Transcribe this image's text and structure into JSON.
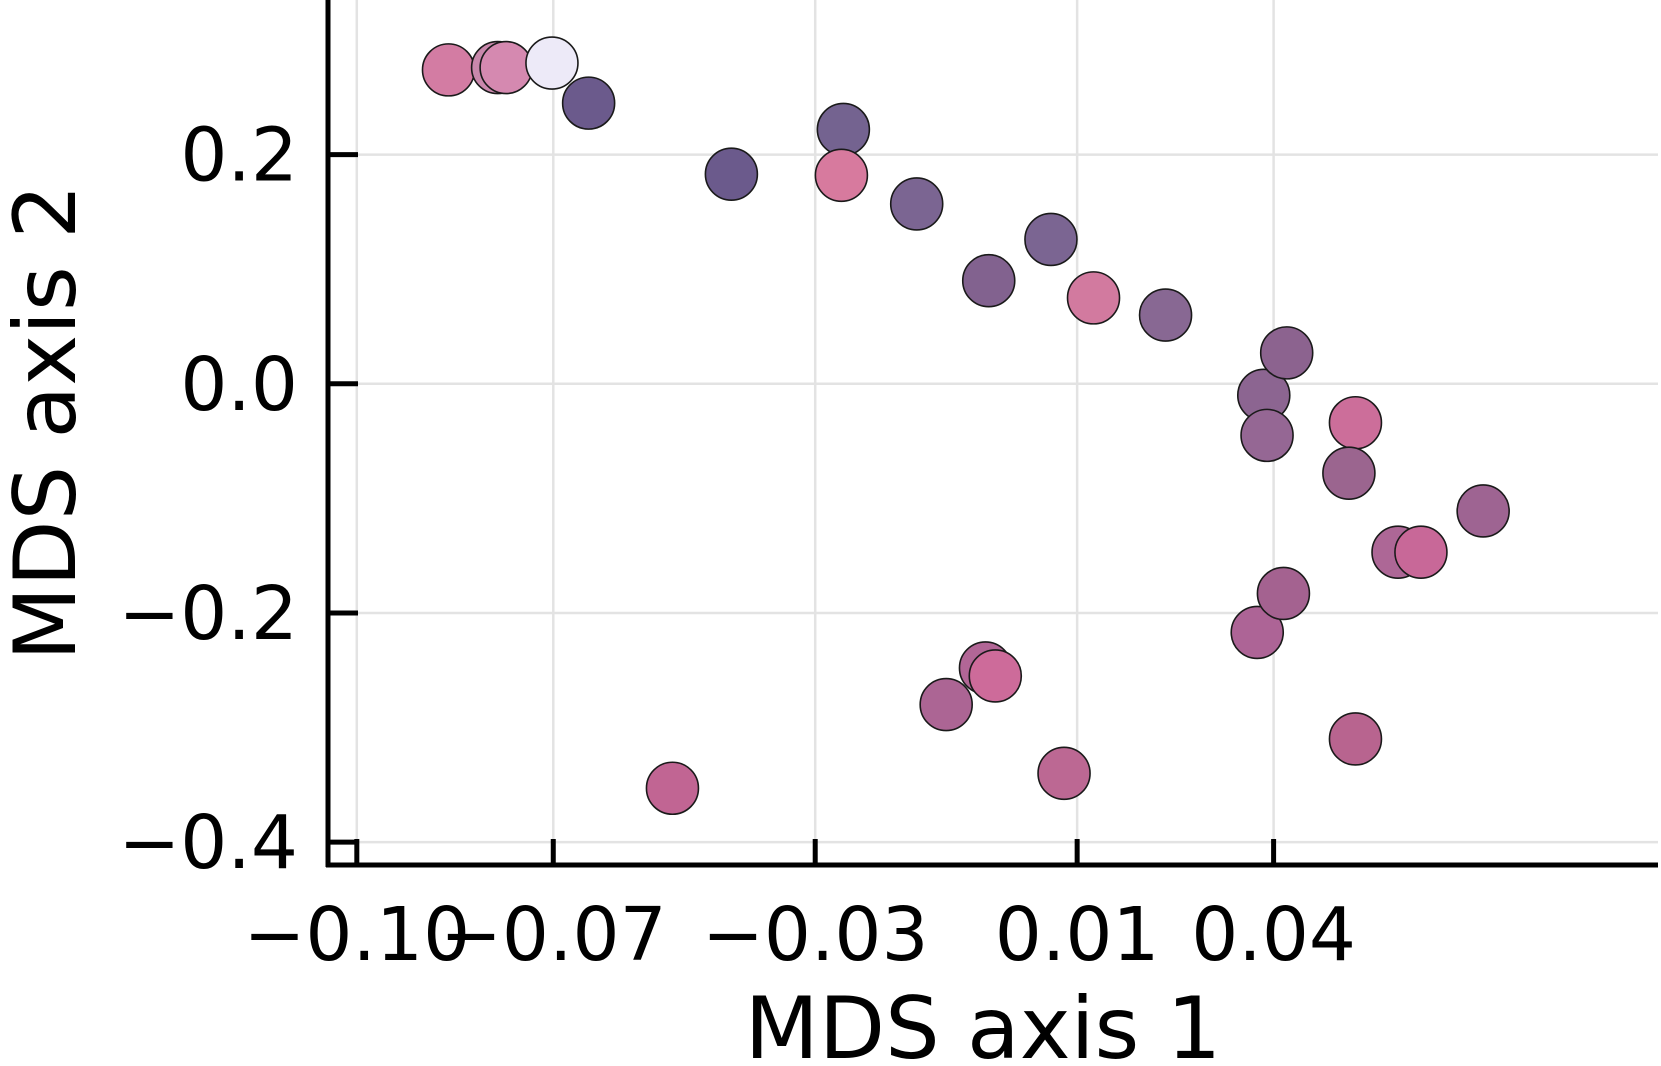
{
  "chart_data": {
    "type": "scatter",
    "title": "",
    "xlabel": "MDS axis 1",
    "ylabel": "MDS axis 2",
    "xlim": [
      -0.1044,
      0.0987
    ],
    "ylim": [
      -0.42,
      0.335
    ],
    "xticks": [
      -0.1,
      -0.07,
      -0.03,
      0.01,
      0.04
    ],
    "xtick_labels": [
      "−0.10",
      "−0.07",
      "−0.03",
      "0.01",
      "0.04"
    ],
    "yticks": [
      -0.4,
      -0.2,
      0.0,
      0.2
    ],
    "ytick_labels": [
      "−0.4",
      "−0.2",
      "0.0",
      "0.2"
    ],
    "grid": true,
    "legend": false,
    "points": [
      {
        "x": -0.086,
        "y": 0.274,
        "color": "#d37ca3"
      },
      {
        "x": -0.0785,
        "y": 0.276,
        "color": "#c988ac"
      },
      {
        "x": -0.0772,
        "y": 0.276,
        "color": "#d589b0"
      },
      {
        "x": -0.0702,
        "y": 0.28,
        "color": "#edeaf8"
      },
      {
        "x": -0.0646,
        "y": 0.245,
        "color": "#6b5a8c"
      },
      {
        "x": -0.0518,
        "y": -0.353,
        "color": "#c16593"
      },
      {
        "x": -0.0428,
        "y": 0.183,
        "color": "#6b5a8c"
      },
      {
        "x": -0.0257,
        "y": 0.222,
        "color": "#746390"
      },
      {
        "x": -0.026,
        "y": 0.182,
        "color": "#d77a9e"
      },
      {
        "x": -0.0145,
        "y": 0.157,
        "color": "#7b6592"
      },
      {
        "x": -0.01,
        "y": -0.28,
        "color": "#ac6594"
      },
      {
        "x": -0.004,
        "y": -0.248,
        "color": "#b26696"
      },
      {
        "x": -0.0025,
        "y": -0.255,
        "color": "#cd6b9a"
      },
      {
        "x": -0.0035,
        "y": 0.09,
        "color": "#82628f"
      },
      {
        "x": 0.006,
        "y": 0.126,
        "color": "#7b6592"
      },
      {
        "x": 0.0125,
        "y": 0.075,
        "color": "#d27a9f"
      },
      {
        "x": 0.008,
        "y": -0.34,
        "color": "#bc6893"
      },
      {
        "x": 0.0235,
        "y": 0.06,
        "color": "#886893"
      },
      {
        "x": 0.0385,
        "y": -0.01,
        "color": "#8c6591"
      },
      {
        "x": 0.039,
        "y": -0.045,
        "color": "#956794"
      },
      {
        "x": 0.042,
        "y": 0.027,
        "color": "#8c638f"
      },
      {
        "x": 0.0375,
        "y": -0.217,
        "color": "#ad6496"
      },
      {
        "x": 0.0415,
        "y": -0.183,
        "color": "#a46290"
      },
      {
        "x": 0.0525,
        "y": -0.034,
        "color": "#cc6e9a"
      },
      {
        "x": 0.0515,
        "y": -0.078,
        "color": "#9b658f"
      },
      {
        "x": 0.059,
        "y": -0.147,
        "color": "#ad6796"
      },
      {
        "x": 0.0625,
        "y": -0.147,
        "color": "#c86898"
      },
      {
        "x": 0.072,
        "y": -0.111,
        "color": "#9e6492"
      },
      {
        "x": 0.0525,
        "y": -0.31,
        "color": "#b8648f"
      }
    ]
  }
}
